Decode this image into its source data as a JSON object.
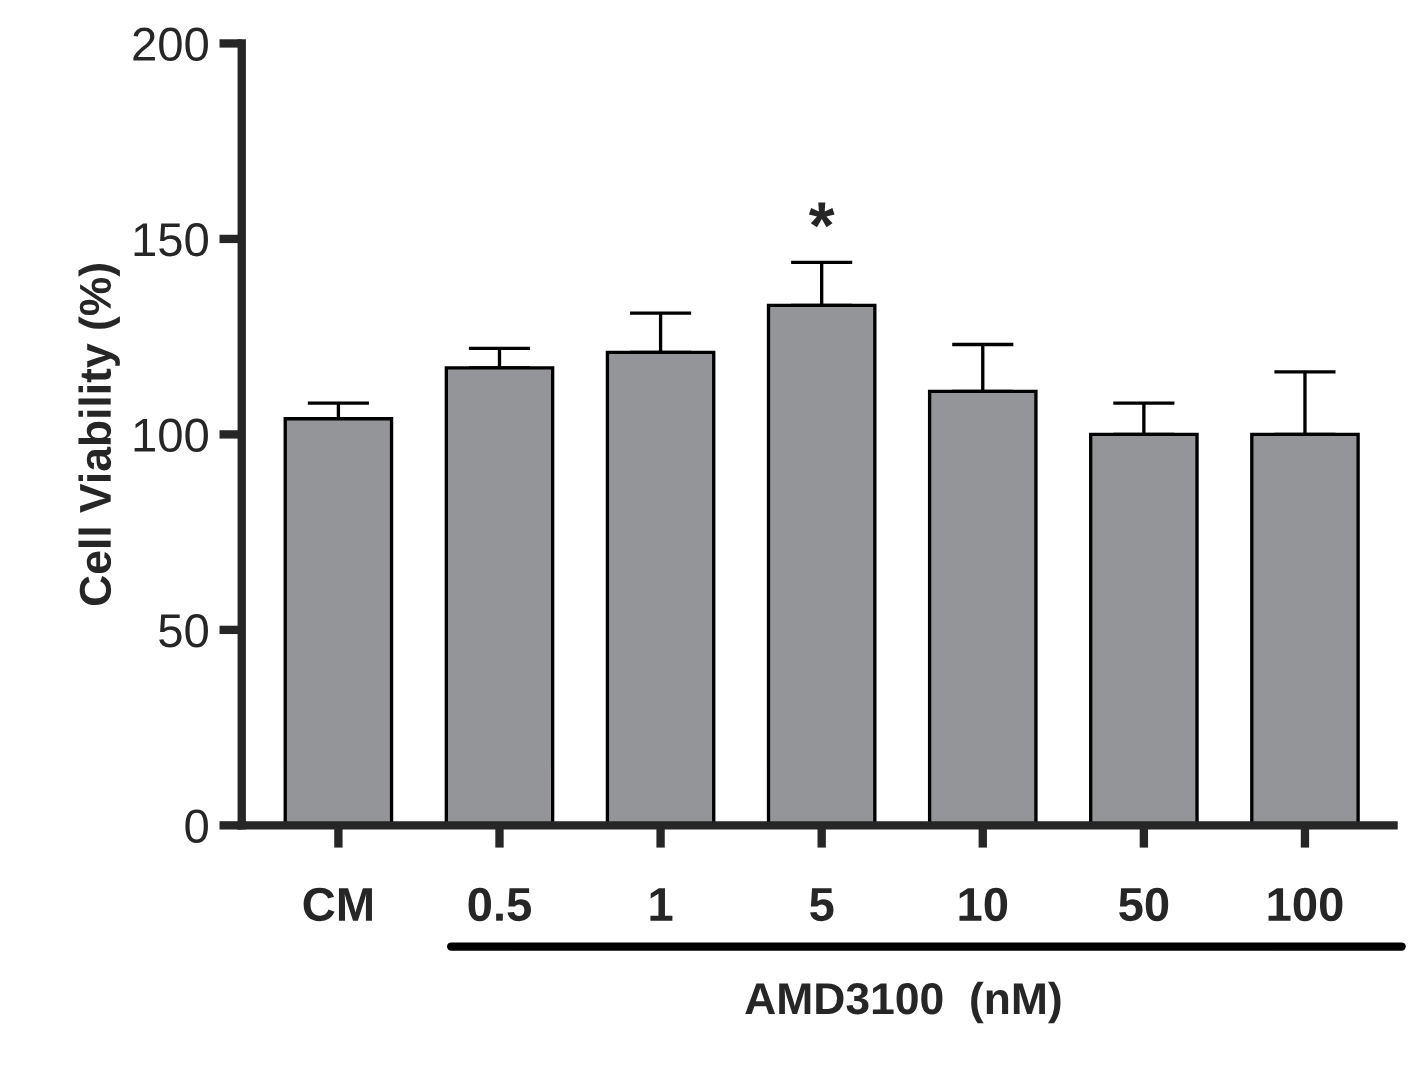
{
  "chart_data": {
    "type": "bar",
    "ylabel": "Cell Viability (%)",
    "xlabel": "AMD3100  (nM)",
    "categories": [
      "CM",
      "0.5",
      "1",
      "5",
      "10",
      "50",
      "100"
    ],
    "values": [
      104,
      117,
      121,
      133,
      111,
      100,
      100
    ],
    "errors": [
      [
        104,
        108
      ],
      [
        117,
        122
      ],
      [
        121,
        131
      ],
      [
        133,
        144
      ],
      [
        111,
        123
      ],
      [
        100,
        108
      ],
      [
        100,
        116
      ]
    ],
    "color": "#939598",
    "ylim": [
      0,
      200
    ],
    "yticks": [
      0,
      50,
      100,
      150,
      200
    ],
    "grid": false,
    "legend": false,
    "annotations": [
      "*"
    ]
  }
}
